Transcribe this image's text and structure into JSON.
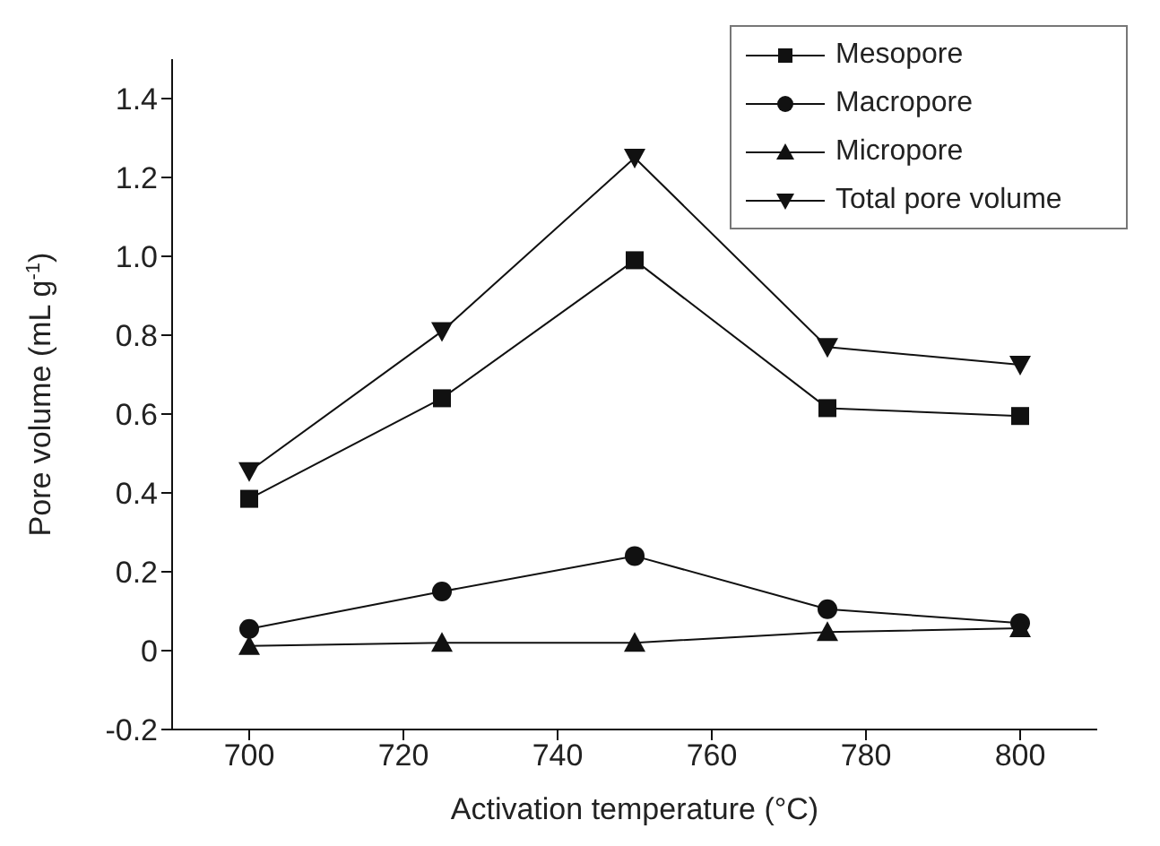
{
  "chart_data": {
    "type": "line",
    "xlabel": "Activation temperature (°C)",
    "ylabel": "Pore volume (mL g$^{-1}$)",
    "x": [
      700,
      725,
      750,
      775,
      800
    ],
    "series": [
      {
        "name": "Mesopore",
        "color": "#111111",
        "marker": "square",
        "values": [
          0.385,
          0.64,
          0.99,
          0.615,
          0.595
        ]
      },
      {
        "name": "Macropore",
        "color": "#111111",
        "marker": "circle",
        "values": [
          0.055,
          0.15,
          0.24,
          0.105,
          0.07
        ]
      },
      {
        "name": "Micropore",
        "color": "#111111",
        "marker": "triangle",
        "values": [
          0.012,
          0.02,
          0.02,
          0.047,
          0.057
        ]
      },
      {
        "name": "Total pore volume",
        "color": "#111111",
        "marker": "triangle-down",
        "values": [
          0.455,
          0.81,
          1.25,
          0.77,
          0.725
        ]
      }
    ],
    "xlim": [
      690,
      810
    ],
    "xticks": [
      700,
      720,
      740,
      760,
      780,
      800
    ],
    "ylim": [
      -0.2,
      1.5
    ],
    "yticks": [
      -0.2,
      0,
      0.2,
      0.4,
      0.6,
      0.8,
      {
        "value": 1,
        "label": "1.0"
      },
      1.2,
      1.4
    ],
    "grid": false,
    "legend": "top right",
    "line_style": "solid"
  }
}
